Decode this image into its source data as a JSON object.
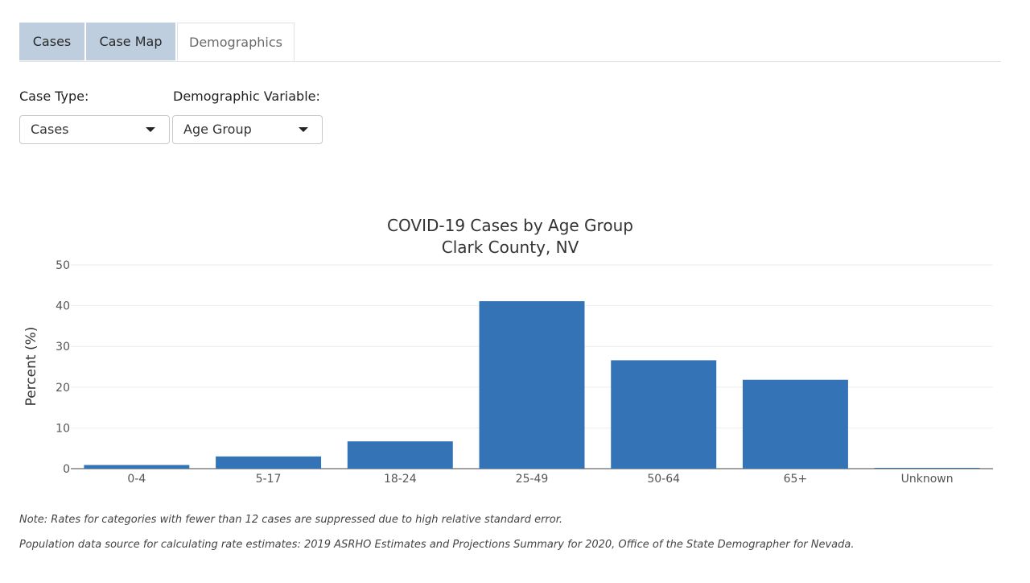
{
  "tabs": [
    {
      "label": "Cases"
    },
    {
      "label": "Case Map"
    },
    {
      "label": "Demographics"
    }
  ],
  "controls": {
    "case_type": {
      "label": "Case Type:",
      "value": "Cases"
    },
    "demographic_variable": {
      "label": "Demographic Variable:",
      "value": "Age Group"
    }
  },
  "chart_data": {
    "type": "bar",
    "title": "COVID-19 Cases by Age Group",
    "subtitle": "Clark County, NV",
    "xlabel": "",
    "ylabel": "Percent (%)",
    "ylim": [
      0,
      50
    ],
    "yticks": [
      0,
      10,
      20,
      30,
      40,
      50
    ],
    "grid": true,
    "bar_color": "#3474b6",
    "categories": [
      "0-4",
      "5-17",
      "18-24",
      "25-49",
      "50-64",
      "65+",
      "Unknown"
    ],
    "values": [
      0.9,
      3.0,
      6.7,
      41.1,
      26.6,
      21.8,
      0.2
    ]
  },
  "notes": {
    "note1": "Note: Rates for categories with fewer than 12 cases are suppressed due to high relative standard error.",
    "note2": "Population data source for calculating rate estimates: 2019 ASRHO Estimates and Projections Summary for 2020, Office of the State Demographer for Nevada."
  }
}
